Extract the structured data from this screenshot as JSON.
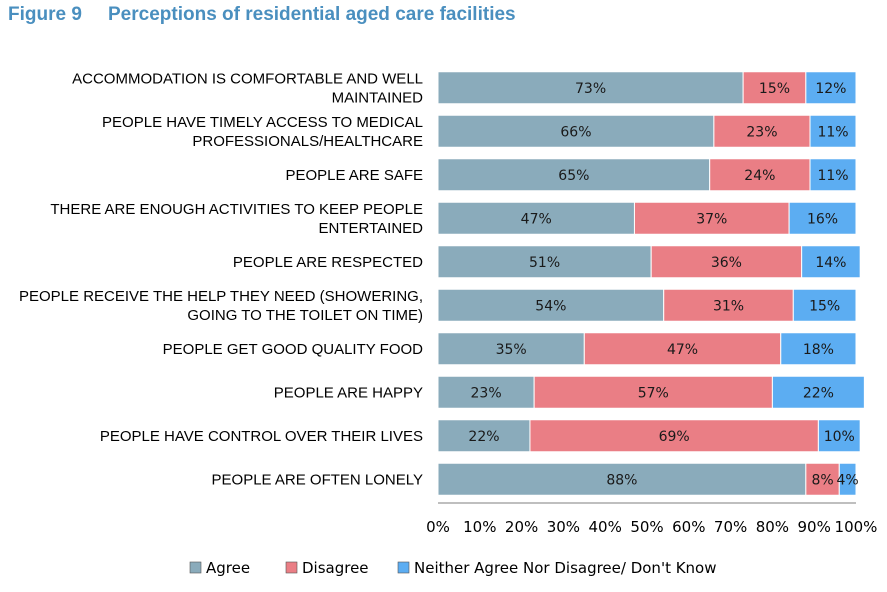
{
  "figure": {
    "number": "Figure 9",
    "title": "Perceptions of residential aged care facilities"
  },
  "colors": {
    "agree": "#8aabbb",
    "disagree": "#ea7e85",
    "neither": "#5cadf2",
    "title": "#4a8fbf"
  },
  "chart_data": {
    "type": "bar",
    "orientation": "horizontal",
    "stacked": true,
    "percent_stacked": true,
    "categories": [
      [
        "ACCOMMODATION IS COMFORTABLE AND WELL",
        "MAINTAINED"
      ],
      [
        "PEOPLE HAVE TIMELY ACCESS TO MEDICAL",
        "PROFESSIONALS/HEALTHCARE"
      ],
      [
        "PEOPLE ARE SAFE"
      ],
      [
        "THERE ARE ENOUGH ACTIVITIES TO KEEP PEOPLE",
        "ENTERTAINED"
      ],
      [
        "PEOPLE ARE RESPECTED"
      ],
      [
        "PEOPLE RECEIVE THE HELP THEY NEED (SHOWERING,",
        "GOING TO THE TOILET ON TIME)"
      ],
      [
        "PEOPLE GET GOOD QUALITY FOOD"
      ],
      [
        "PEOPLE ARE HAPPY"
      ],
      [
        "PEOPLE HAVE CONTROL OVER THEIR LIVES"
      ],
      [
        "PEOPLE ARE OFTEN LONELY"
      ]
    ],
    "series": [
      {
        "name": "Agree",
        "values": [
          73,
          66,
          65,
          47,
          51,
          54,
          35,
          23,
          22,
          88
        ]
      },
      {
        "name": "Disagree",
        "values": [
          15,
          23,
          24,
          37,
          36,
          31,
          47,
          57,
          69,
          8
        ]
      },
      {
        "name": "Neither Agree Nor Disagree/ Don't Know",
        "values": [
          12,
          11,
          11,
          16,
          14,
          15,
          18,
          22,
          10,
          4
        ]
      }
    ],
    "data_label_suffix": "%",
    "xlim": [
      0,
      100
    ],
    "xticks": [
      "0%",
      "10%",
      "20%",
      "30%",
      "40%",
      "50%",
      "60%",
      "70%",
      "80%",
      "90%",
      "100%"
    ],
    "grid": false,
    "legend_position": "bottom"
  }
}
